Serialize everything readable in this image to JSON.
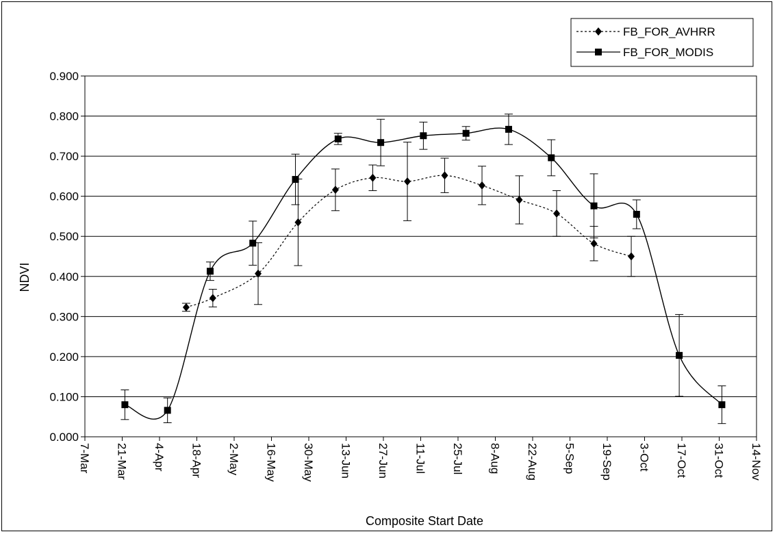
{
  "chart_data": {
    "type": "line",
    "xlabel": "Composite Start Date",
    "ylabel": "NDVI",
    "x_ticks": [
      "7-Mar",
      "21-Mar",
      "4-Apr",
      "18-Apr",
      "2-May",
      "16-May",
      "30-May",
      "13-Jun",
      "27-Jun",
      "11-Jul",
      "25-Jul",
      "8-Aug",
      "22-Aug",
      "5-Sep",
      "19-Sep",
      "3-Oct",
      "17-Oct",
      "31-Oct",
      "14-Nov"
    ],
    "y_ticks": [
      "0.000",
      "0.100",
      "0.200",
      "0.300",
      "0.400",
      "0.500",
      "0.600",
      "0.700",
      "0.800",
      "0.900"
    ],
    "xlim": [
      "7-Mar",
      "14-Nov"
    ],
    "ylim": [
      0,
      0.9
    ],
    "grid": "horizontal",
    "legend_position": "top-right",
    "series": [
      {
        "name": "FB_FOR_AVHRR",
        "marker": "diamond",
        "line_style": "dotted",
        "color": "#000000",
        "points": [
          {
            "x": "14-Apr",
            "y": 0.323,
            "err": 0.01
          },
          {
            "x": "24-Apr",
            "y": 0.346,
            "err": 0.022
          },
          {
            "x": "11-May",
            "y": 0.407,
            "err": 0.077
          },
          {
            "x": "26-May",
            "y": 0.535,
            "err": 0.108
          },
          {
            "x": "9-Jun",
            "y": 0.616,
            "err": 0.052
          },
          {
            "x": "23-Jun",
            "y": 0.646,
            "err": 0.032
          },
          {
            "x": "6-Jul",
            "y": 0.637,
            "err": 0.098
          },
          {
            "x": "20-Jul",
            "y": 0.652,
            "err": 0.043
          },
          {
            "x": "3-Aug",
            "y": 0.627,
            "err": 0.048
          },
          {
            "x": "17-Aug",
            "y": 0.591,
            "err": 0.06
          },
          {
            "x": "31-Aug",
            "y": 0.557,
            "err": 0.057
          },
          {
            "x": "14-Sep",
            "y": 0.482,
            "err": 0.043
          },
          {
            "x": "28-Sep",
            "y": 0.45,
            "err": 0.05
          }
        ]
      },
      {
        "name": "FB_FOR_MODIS",
        "marker": "square",
        "line_style": "solid",
        "color": "#000000",
        "points": [
          {
            "x": "22-Mar",
            "y": 0.08,
            "err": 0.037
          },
          {
            "x": "7-Apr",
            "y": 0.066,
            "err": 0.031
          },
          {
            "x": "23-Apr",
            "y": 0.413,
            "err": 0.023
          },
          {
            "x": "9-May",
            "y": 0.483,
            "err": 0.055
          },
          {
            "x": "25-May",
            "y": 0.642,
            "err": 0.063
          },
          {
            "x": "10-Jun",
            "y": 0.743,
            "err": 0.014
          },
          {
            "x": "26-Jun",
            "y": 0.734,
            "err": 0.058
          },
          {
            "x": "12-Jul",
            "y": 0.751,
            "err": 0.034
          },
          {
            "x": "28-Jul",
            "y": 0.757,
            "err": 0.017
          },
          {
            "x": "13-Aug",
            "y": 0.767,
            "err": 0.038
          },
          {
            "x": "29-Aug",
            "y": 0.696,
            "err": 0.045
          },
          {
            "x": "14-Sep",
            "y": 0.576,
            "err": 0.08
          },
          {
            "x": "30-Sep",
            "y": 0.555,
            "err": 0.036
          },
          {
            "x": "16-Oct",
            "y": 0.203,
            "err": 0.102
          },
          {
            "x": "1-Nov",
            "y": 0.08,
            "err": 0.047
          }
        ]
      }
    ]
  }
}
